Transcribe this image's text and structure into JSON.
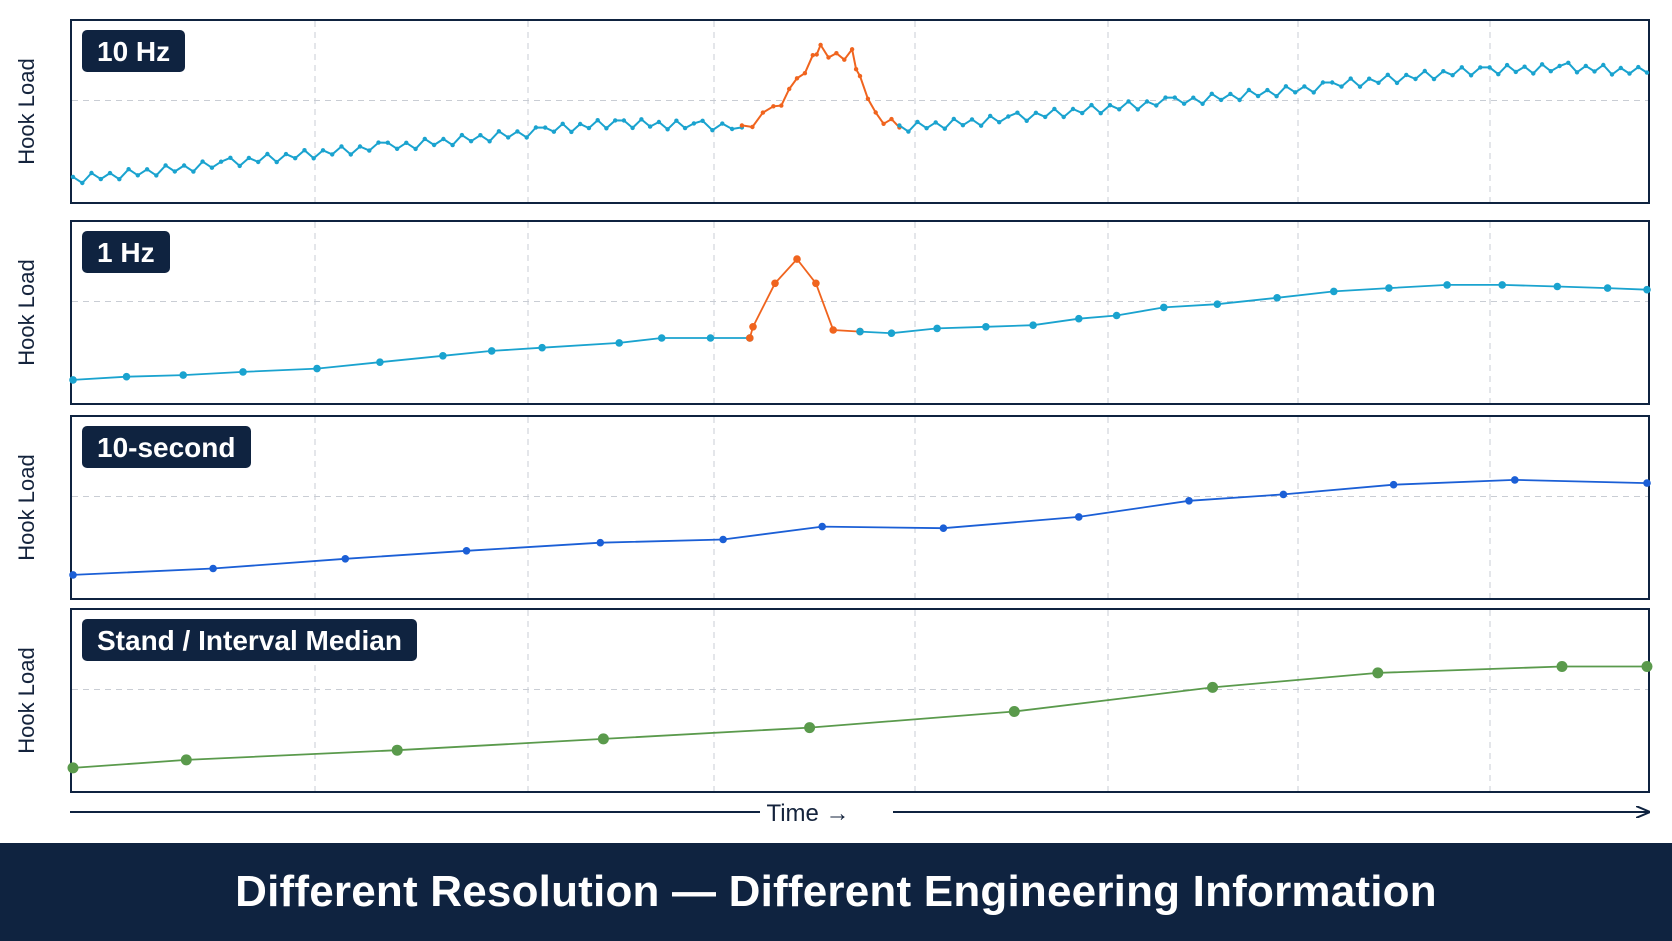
{
  "footer": {
    "title": "Different Resolution — Different Engineering Information"
  },
  "x_axis": {
    "label": "Time →"
  },
  "colors": {
    "cyan": "#1aa3cf",
    "orange": "#f0641e",
    "blue": "#1b5fd6",
    "green": "#5a9a4c",
    "frame": "#0f2340"
  },
  "chart_data": [
    {
      "type": "line",
      "badge": "10 Hz",
      "ylabel": "Hook Load",
      "grid": true,
      "ylim": [
        0,
        100
      ],
      "xlim": [
        0,
        100
      ],
      "markers": "small",
      "series": [
        {
          "color": "cyan",
          "x": [
            0,
            10,
            20,
            30,
            35,
            40,
            42.5
          ],
          "y": [
            10,
            20,
            30,
            40,
            45,
            43,
            42
          ]
        },
        {
          "color": "orange",
          "x": [
            42.5,
            44.5,
            46,
            47,
            47.5,
            48.5,
            49.5,
            50,
            51,
            52.5
          ],
          "y": [
            42,
            52,
            70,
            85,
            92,
            85,
            88,
            72,
            50,
            42
          ]
        },
        {
          "color": "cyan",
          "x": [
            52.5,
            60,
            70,
            80,
            90,
            95,
            100
          ],
          "y": [
            42,
            48,
            58,
            68,
            78,
            79,
            76
          ]
        }
      ]
    },
    {
      "type": "line",
      "badge": "1 Hz",
      "ylabel": "Hook Load",
      "grid": true,
      "ylim": [
        0,
        100
      ],
      "xlim": [
        0,
        100
      ],
      "markers": "medium",
      "series": [
        {
          "color": "cyan",
          "x": [
            0,
            3.4,
            7,
            10.8,
            15.5,
            19.5,
            23.5,
            26.6,
            29.8,
            34.7,
            37.4,
            40.5,
            43
          ],
          "y": [
            10,
            12,
            13,
            15,
            17,
            21,
            25,
            28,
            30,
            33,
            36,
            36,
            36
          ]
        },
        {
          "color": "orange",
          "x": [
            43,
            43.2,
            44.6,
            46,
            47.2,
            48.3,
            50
          ],
          "y": [
            36,
            43,
            70,
            85,
            70,
            41,
            40
          ]
        },
        {
          "color": "cyan",
          "x": [
            50,
            52,
            54.9,
            58,
            61,
            63.9,
            66.3,
            69.3,
            72.7,
            76.5,
            80.1,
            83.6,
            87.3,
            90.8,
            94.3,
            97.5,
            100
          ],
          "y": [
            40,
            39,
            42,
            43,
            44,
            48,
            50,
            55,
            57,
            61,
            65,
            67,
            69,
            69,
            68,
            67,
            66
          ]
        }
      ]
    },
    {
      "type": "line",
      "badge": "10-second",
      "ylabel": "Hook Load",
      "grid": true,
      "ylim": [
        0,
        100
      ],
      "xlim": [
        0,
        100
      ],
      "markers": "medium",
      "series": [
        {
          "color": "blue",
          "x": [
            0,
            8.9,
            17.3,
            25,
            33.5,
            41.3,
            47.6,
            55.3,
            63.9,
            70.9,
            76.9,
            83.9,
            91.6,
            100
          ],
          "y": [
            10,
            14,
            20,
            25,
            30,
            32,
            40,
            39,
            46,
            56,
            60,
            66,
            69,
            67
          ]
        }
      ]
    },
    {
      "type": "line",
      "badge": "Stand / Interval Median",
      "ylabel": "Hook Load",
      "grid": true,
      "ylim": [
        0,
        100
      ],
      "xlim": [
        0,
        100
      ],
      "markers": "large",
      "series": [
        {
          "color": "green",
          "x": [
            0,
            7.2,
            20.6,
            33.7,
            46.8,
            59.8,
            72.4,
            82.9,
            94.6,
            100
          ],
          "y": [
            10,
            15,
            21,
            28,
            35,
            45,
            60,
            69,
            73,
            73
          ]
        }
      ]
    }
  ]
}
